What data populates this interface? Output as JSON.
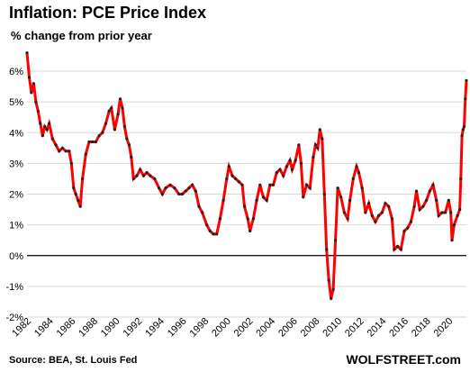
{
  "chart_data": {
    "type": "line",
    "title": "Inflation: PCE Price Index",
    "subtitle": "% change from prior year",
    "source": "Source: BEA, St. Louis Fed",
    "brand": "WOLFSTREET.com",
    "ylim": [
      -2,
      6.5
    ],
    "yticks": [
      -2,
      -1,
      0,
      1,
      2,
      3,
      4,
      5,
      6
    ],
    "ytick_labels": [
      "-2%",
      "-1%",
      "0%",
      "1%",
      "2%",
      "3%",
      "4%",
      "5%",
      "6%"
    ],
    "xlim": [
      1982,
      2021.6
    ],
    "xticks": [
      1982,
      1984,
      1986,
      1988,
      1990,
      1992,
      1994,
      1996,
      1998,
      2000,
      2002,
      2004,
      2006,
      2008,
      2010,
      2012,
      2014,
      2016,
      2018,
      2020
    ],
    "xtick_labels": [
      "1982",
      "1984",
      "1986",
      "1988",
      "1990",
      "1992",
      "1994",
      "1996",
      "1998",
      "2000",
      "2002",
      "2004",
      "2006",
      "2008",
      "2010",
      "2012",
      "2014",
      "2016",
      "2018",
      "2020"
    ],
    "grid": "horizontal",
    "line_color": "#ff0000",
    "marker_color": "#222222",
    "series": [
      {
        "values": [
          [
            1982.0,
            6.6
          ],
          [
            1982.2,
            5.8
          ],
          [
            1982.4,
            5.3
          ],
          [
            1982.6,
            5.6
          ],
          [
            1982.8,
            5.0
          ],
          [
            1983.0,
            4.7
          ],
          [
            1983.2,
            4.3
          ],
          [
            1983.4,
            3.9
          ],
          [
            1983.6,
            4.2
          ],
          [
            1983.8,
            4.1
          ],
          [
            1984.0,
            4.3
          ],
          [
            1984.3,
            3.8
          ],
          [
            1984.6,
            3.6
          ],
          [
            1984.9,
            3.4
          ],
          [
            1985.2,
            3.5
          ],
          [
            1985.5,
            3.4
          ],
          [
            1985.8,
            3.4
          ],
          [
            1986.0,
            3.0
          ],
          [
            1986.2,
            2.2
          ],
          [
            1986.4,
            2.0
          ],
          [
            1986.6,
            1.8
          ],
          [
            1986.8,
            1.6
          ],
          [
            1987.0,
            2.5
          ],
          [
            1987.3,
            3.3
          ],
          [
            1987.6,
            3.7
          ],
          [
            1987.9,
            3.7
          ],
          [
            1988.2,
            3.7
          ],
          [
            1988.5,
            3.9
          ],
          [
            1988.8,
            4.0
          ],
          [
            1989.1,
            4.3
          ],
          [
            1989.4,
            4.7
          ],
          [
            1989.6,
            4.8
          ],
          [
            1989.9,
            4.1
          ],
          [
            1990.2,
            4.6
          ],
          [
            1990.4,
            5.1
          ],
          [
            1990.6,
            4.8
          ],
          [
            1990.8,
            4.2
          ],
          [
            1991.0,
            3.8
          ],
          [
            1991.2,
            3.6
          ],
          [
            1991.4,
            3.2
          ],
          [
            1991.6,
            2.5
          ],
          [
            1991.9,
            2.6
          ],
          [
            1992.2,
            2.8
          ],
          [
            1992.5,
            2.6
          ],
          [
            1992.8,
            2.7
          ],
          [
            1993.1,
            2.6
          ],
          [
            1993.5,
            2.5
          ],
          [
            1993.9,
            2.2
          ],
          [
            1994.2,
            2.0
          ],
          [
            1994.5,
            2.2
          ],
          [
            1994.9,
            2.3
          ],
          [
            1995.3,
            2.2
          ],
          [
            1995.7,
            2.0
          ],
          [
            1996.0,
            2.0
          ],
          [
            1996.3,
            2.1
          ],
          [
            1996.6,
            2.2
          ],
          [
            1996.9,
            2.3
          ],
          [
            1997.2,
            2.1
          ],
          [
            1997.5,
            1.6
          ],
          [
            1997.8,
            1.4
          ],
          [
            1998.2,
            1.0
          ],
          [
            1998.5,
            0.8
          ],
          [
            1998.8,
            0.7
          ],
          [
            1999.1,
            0.7
          ],
          [
            1999.4,
            1.2
          ],
          [
            1999.7,
            1.8
          ],
          [
            2000.0,
            2.5
          ],
          [
            2000.2,
            2.9
          ],
          [
            2000.5,
            2.6
          ],
          [
            2000.8,
            2.5
          ],
          [
            2001.1,
            2.4
          ],
          [
            2001.4,
            2.3
          ],
          [
            2001.6,
            1.6
          ],
          [
            2001.9,
            1.2
          ],
          [
            2002.1,
            0.8
          ],
          [
            2002.4,
            1.2
          ],
          [
            2002.7,
            1.8
          ],
          [
            2003.0,
            2.3
          ],
          [
            2003.3,
            1.9
          ],
          [
            2003.6,
            1.8
          ],
          [
            2003.9,
            2.3
          ],
          [
            2004.2,
            2.3
          ],
          [
            2004.5,
            2.7
          ],
          [
            2004.8,
            2.8
          ],
          [
            2005.1,
            2.6
          ],
          [
            2005.4,
            2.9
          ],
          [
            2005.7,
            3.1
          ],
          [
            2005.9,
            2.8
          ],
          [
            2006.2,
            3.1
          ],
          [
            2006.5,
            3.6
          ],
          [
            2006.7,
            3.0
          ],
          [
            2006.9,
            1.9
          ],
          [
            2007.2,
            2.3
          ],
          [
            2007.5,
            2.2
          ],
          [
            2007.8,
            3.2
          ],
          [
            2008.0,
            3.6
          ],
          [
            2008.2,
            3.5
          ],
          [
            2008.4,
            4.1
          ],
          [
            2008.6,
            3.8
          ],
          [
            2008.8,
            2.0
          ],
          [
            2009.0,
            0.2
          ],
          [
            2009.2,
            -0.8
          ],
          [
            2009.4,
            -1.4
          ],
          [
            2009.6,
            -1.1
          ],
          [
            2009.8,
            0.5
          ],
          [
            2010.0,
            2.2
          ],
          [
            2010.3,
            1.9
          ],
          [
            2010.6,
            1.4
          ],
          [
            2010.9,
            1.2
          ],
          [
            2011.1,
            1.8
          ],
          [
            2011.4,
            2.5
          ],
          [
            2011.7,
            2.9
          ],
          [
            2011.9,
            2.7
          ],
          [
            2012.2,
            2.2
          ],
          [
            2012.5,
            1.4
          ],
          [
            2012.8,
            1.7
          ],
          [
            2013.1,
            1.3
          ],
          [
            2013.4,
            1.1
          ],
          [
            2013.7,
            1.3
          ],
          [
            2014.0,
            1.4
          ],
          [
            2014.3,
            1.7
          ],
          [
            2014.6,
            1.6
          ],
          [
            2014.9,
            1.2
          ],
          [
            2015.1,
            0.2
          ],
          [
            2015.4,
            0.3
          ],
          [
            2015.7,
            0.2
          ],
          [
            2016.0,
            0.8
          ],
          [
            2016.3,
            0.9
          ],
          [
            2016.6,
            1.1
          ],
          [
            2016.9,
            1.6
          ],
          [
            2017.1,
            2.1
          ],
          [
            2017.4,
            1.5
          ],
          [
            2017.7,
            1.6
          ],
          [
            2018.0,
            1.8
          ],
          [
            2018.3,
            2.1
          ],
          [
            2018.6,
            2.3
          ],
          [
            2018.9,
            1.8
          ],
          [
            2019.1,
            1.3
          ],
          [
            2019.4,
            1.4
          ],
          [
            2019.7,
            1.4
          ],
          [
            2020.0,
            1.8
          ],
          [
            2020.2,
            1.4
          ],
          [
            2020.3,
            0.5
          ],
          [
            2020.5,
            1.0
          ],
          [
            2020.8,
            1.3
          ],
          [
            2021.0,
            1.5
          ],
          [
            2021.1,
            2.5
          ],
          [
            2021.2,
            3.9
          ],
          [
            2021.3,
            4.1
          ],
          [
            2021.4,
            4.2
          ],
          [
            2021.5,
            5.1
          ],
          [
            2021.6,
            5.7
          ]
        ]
      }
    ]
  }
}
